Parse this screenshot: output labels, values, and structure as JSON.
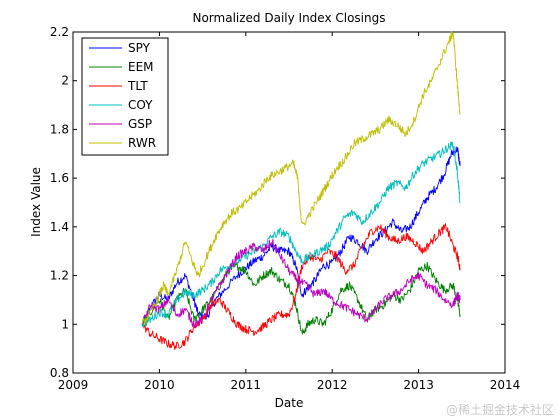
{
  "chart_data": {
    "type": "line",
    "title": "Normalized Daily Index Closings",
    "xlabel": "Date",
    "ylabel": "Index Value",
    "xlim": [
      2009,
      2014
    ],
    "ylim": [
      0.8,
      2.2
    ],
    "xticks": [
      "2009",
      "2010",
      "2011",
      "2012",
      "2013",
      "2014"
    ],
    "yticks": [
      "0.8",
      "1",
      "1.2",
      "1.4",
      "1.6",
      "1.8",
      "2",
      "2.2"
    ],
    "grid": false,
    "legend_position": "top-left",
    "series": [
      {
        "name": "SPY",
        "color": "#0000ff",
        "points": [
          [
            2009.8,
            1.0
          ],
          [
            2009.9,
            1.07
          ],
          [
            2010.0,
            1.12
          ],
          [
            2010.1,
            1.1
          ],
          [
            2010.2,
            1.17
          ],
          [
            2010.3,
            1.2
          ],
          [
            2010.4,
            1.1
          ],
          [
            2010.45,
            1.04
          ],
          [
            2010.55,
            1.03
          ],
          [
            2010.65,
            1.1
          ],
          [
            2010.75,
            1.14
          ],
          [
            2010.9,
            1.2
          ],
          [
            2011.0,
            1.23
          ],
          [
            2011.1,
            1.26
          ],
          [
            2011.2,
            1.28
          ],
          [
            2011.3,
            1.32
          ],
          [
            2011.4,
            1.3
          ],
          [
            2011.5,
            1.3
          ],
          [
            2011.58,
            1.24
          ],
          [
            2011.65,
            1.12
          ],
          [
            2011.72,
            1.15
          ],
          [
            2011.8,
            1.18
          ],
          [
            2011.9,
            1.24
          ],
          [
            2012.0,
            1.25
          ],
          [
            2012.1,
            1.3
          ],
          [
            2012.2,
            1.36
          ],
          [
            2012.3,
            1.34
          ],
          [
            2012.4,
            1.3
          ],
          [
            2012.5,
            1.35
          ],
          [
            2012.6,
            1.38
          ],
          [
            2012.7,
            1.42
          ],
          [
            2012.8,
            1.38
          ],
          [
            2012.9,
            1.4
          ],
          [
            2013.0,
            1.46
          ],
          [
            2013.1,
            1.52
          ],
          [
            2013.2,
            1.56
          ],
          [
            2013.3,
            1.62
          ],
          [
            2013.38,
            1.7
          ],
          [
            2013.45,
            1.72
          ],
          [
            2013.48,
            1.65
          ]
        ]
      },
      {
        "name": "EEM",
        "color": "#008000",
        "points": [
          [
            2009.8,
            1.0
          ],
          [
            2009.9,
            1.05
          ],
          [
            2010.0,
            1.1
          ],
          [
            2010.1,
            1.02
          ],
          [
            2010.2,
            1.1
          ],
          [
            2010.3,
            1.14
          ],
          [
            2010.4,
            1.02
          ],
          [
            2010.5,
            1.06
          ],
          [
            2010.6,
            1.1
          ],
          [
            2010.7,
            1.16
          ],
          [
            2010.8,
            1.22
          ],
          [
            2010.9,
            1.24
          ],
          [
            2011.0,
            1.22
          ],
          [
            2011.1,
            1.16
          ],
          [
            2011.2,
            1.2
          ],
          [
            2011.3,
            1.22
          ],
          [
            2011.4,
            1.18
          ],
          [
            2011.5,
            1.16
          ],
          [
            2011.58,
            1.08
          ],
          [
            2011.65,
            0.96
          ],
          [
            2011.72,
            1.0
          ],
          [
            2011.8,
            1.02
          ],
          [
            2011.9,
            1.0
          ],
          [
            2012.0,
            1.06
          ],
          [
            2012.1,
            1.14
          ],
          [
            2012.2,
            1.16
          ],
          [
            2012.3,
            1.1
          ],
          [
            2012.4,
            1.02
          ],
          [
            2012.5,
            1.06
          ],
          [
            2012.6,
            1.08
          ],
          [
            2012.7,
            1.12
          ],
          [
            2012.8,
            1.1
          ],
          [
            2012.9,
            1.14
          ],
          [
            2013.0,
            1.22
          ],
          [
            2013.1,
            1.24
          ],
          [
            2013.2,
            1.18
          ],
          [
            2013.3,
            1.14
          ],
          [
            2013.4,
            1.16
          ],
          [
            2013.45,
            1.1
          ],
          [
            2013.48,
            1.04
          ]
        ]
      },
      {
        "name": "TLT",
        "color": "#ff0000",
        "points": [
          [
            2009.8,
            1.0
          ],
          [
            2009.9,
            0.96
          ],
          [
            2010.0,
            0.94
          ],
          [
            2010.1,
            0.92
          ],
          [
            2010.2,
            0.91
          ],
          [
            2010.3,
            0.93
          ],
          [
            2010.4,
            0.99
          ],
          [
            2010.5,
            1.02
          ],
          [
            2010.6,
            1.08
          ],
          [
            2010.7,
            1.1
          ],
          [
            2010.8,
            1.05
          ],
          [
            2010.9,
            1.0
          ],
          [
            2011.0,
            0.98
          ],
          [
            2011.1,
            0.97
          ],
          [
            2011.2,
            0.99
          ],
          [
            2011.3,
            1.02
          ],
          [
            2011.4,
            1.04
          ],
          [
            2011.5,
            1.04
          ],
          [
            2011.58,
            1.12
          ],
          [
            2011.65,
            1.24
          ],
          [
            2011.75,
            1.28
          ],
          [
            2011.85,
            1.26
          ],
          [
            2011.95,
            1.3
          ],
          [
            2012.05,
            1.28
          ],
          [
            2012.15,
            1.22
          ],
          [
            2012.25,
            1.24
          ],
          [
            2012.35,
            1.32
          ],
          [
            2012.45,
            1.38
          ],
          [
            2012.55,
            1.4
          ],
          [
            2012.65,
            1.36
          ],
          [
            2012.75,
            1.34
          ],
          [
            2012.85,
            1.36
          ],
          [
            2012.95,
            1.34
          ],
          [
            2013.05,
            1.3
          ],
          [
            2013.15,
            1.34
          ],
          [
            2013.25,
            1.38
          ],
          [
            2013.32,
            1.4
          ],
          [
            2013.4,
            1.32
          ],
          [
            2013.45,
            1.28
          ],
          [
            2013.48,
            1.23
          ]
        ]
      },
      {
        "name": "COY",
        "color": "#00bfbf",
        "points": [
          [
            2009.8,
            1.0
          ],
          [
            2009.9,
            1.02
          ],
          [
            2010.0,
            1.05
          ],
          [
            2010.1,
            1.04
          ],
          [
            2010.2,
            1.1
          ],
          [
            2010.3,
            1.13
          ],
          [
            2010.4,
            1.12
          ],
          [
            2010.5,
            1.14
          ],
          [
            2010.6,
            1.17
          ],
          [
            2010.7,
            1.22
          ],
          [
            2010.8,
            1.24
          ],
          [
            2010.9,
            1.26
          ],
          [
            2011.0,
            1.28
          ],
          [
            2011.1,
            1.3
          ],
          [
            2011.2,
            1.32
          ],
          [
            2011.3,
            1.36
          ],
          [
            2011.4,
            1.38
          ],
          [
            2011.5,
            1.36
          ],
          [
            2011.58,
            1.3
          ],
          [
            2011.65,
            1.26
          ],
          [
            2011.75,
            1.28
          ],
          [
            2011.85,
            1.3
          ],
          [
            2011.95,
            1.32
          ],
          [
            2012.05,
            1.38
          ],
          [
            2012.15,
            1.44
          ],
          [
            2012.25,
            1.46
          ],
          [
            2012.35,
            1.42
          ],
          [
            2012.45,
            1.46
          ],
          [
            2012.55,
            1.5
          ],
          [
            2012.65,
            1.56
          ],
          [
            2012.75,
            1.58
          ],
          [
            2012.85,
            1.56
          ],
          [
            2012.95,
            1.62
          ],
          [
            2013.05,
            1.66
          ],
          [
            2013.15,
            1.68
          ],
          [
            2013.25,
            1.7
          ],
          [
            2013.32,
            1.72
          ],
          [
            2013.4,
            1.74
          ],
          [
            2013.45,
            1.62
          ],
          [
            2013.48,
            1.5
          ]
        ]
      },
      {
        "name": "GSP",
        "color": "#bf00bf",
        "points": [
          [
            2009.8,
            1.0
          ],
          [
            2009.9,
            1.08
          ],
          [
            2010.0,
            1.06
          ],
          [
            2010.1,
            1.1
          ],
          [
            2010.2,
            1.04
          ],
          [
            2010.3,
            1.06
          ],
          [
            2010.4,
            1.0
          ],
          [
            2010.5,
            1.02
          ],
          [
            2010.6,
            1.1
          ],
          [
            2010.7,
            1.16
          ],
          [
            2010.8,
            1.22
          ],
          [
            2010.9,
            1.28
          ],
          [
            2011.0,
            1.3
          ],
          [
            2011.1,
            1.32
          ],
          [
            2011.2,
            1.3
          ],
          [
            2011.3,
            1.34
          ],
          [
            2011.4,
            1.28
          ],
          [
            2011.5,
            1.22
          ],
          [
            2011.6,
            1.18
          ],
          [
            2011.7,
            1.16
          ],
          [
            2011.8,
            1.12
          ],
          [
            2011.9,
            1.14
          ],
          [
            2012.0,
            1.1
          ],
          [
            2012.1,
            1.08
          ],
          [
            2012.2,
            1.06
          ],
          [
            2012.3,
            1.04
          ],
          [
            2012.4,
            1.02
          ],
          [
            2012.5,
            1.06
          ],
          [
            2012.6,
            1.1
          ],
          [
            2012.7,
            1.12
          ],
          [
            2012.8,
            1.14
          ],
          [
            2012.9,
            1.18
          ],
          [
            2013.0,
            1.2
          ],
          [
            2013.1,
            1.16
          ],
          [
            2013.2,
            1.14
          ],
          [
            2013.3,
            1.1
          ],
          [
            2013.4,
            1.08
          ],
          [
            2013.45,
            1.12
          ],
          [
            2013.48,
            1.1
          ]
        ]
      },
      {
        "name": "RWR",
        "color": "#bfbf00",
        "points": [
          [
            2009.8,
            1.0
          ],
          [
            2009.9,
            1.05
          ],
          [
            2010.0,
            1.12
          ],
          [
            2010.05,
            1.16
          ],
          [
            2010.1,
            1.12
          ],
          [
            2010.2,
            1.22
          ],
          [
            2010.3,
            1.34
          ],
          [
            2010.4,
            1.24
          ],
          [
            2010.45,
            1.2
          ],
          [
            2010.55,
            1.28
          ],
          [
            2010.65,
            1.36
          ],
          [
            2010.75,
            1.42
          ],
          [
            2010.85,
            1.46
          ],
          [
            2010.95,
            1.48
          ],
          [
            2011.05,
            1.52
          ],
          [
            2011.15,
            1.55
          ],
          [
            2011.25,
            1.6
          ],
          [
            2011.35,
            1.62
          ],
          [
            2011.45,
            1.64
          ],
          [
            2011.55,
            1.66
          ],
          [
            2011.6,
            1.6
          ],
          [
            2011.65,
            1.4
          ],
          [
            2011.75,
            1.46
          ],
          [
            2011.85,
            1.52
          ],
          [
            2011.95,
            1.58
          ],
          [
            2012.05,
            1.64
          ],
          [
            2012.15,
            1.68
          ],
          [
            2012.25,
            1.74
          ],
          [
            2012.35,
            1.76
          ],
          [
            2012.45,
            1.78
          ],
          [
            2012.55,
            1.8
          ],
          [
            2012.65,
            1.84
          ],
          [
            2012.75,
            1.82
          ],
          [
            2012.85,
            1.78
          ],
          [
            2012.95,
            1.84
          ],
          [
            2013.05,
            1.94
          ],
          [
            2013.15,
            2.0
          ],
          [
            2013.25,
            2.08
          ],
          [
            2013.35,
            2.16
          ],
          [
            2013.4,
            2.2
          ],
          [
            2013.44,
            2.02
          ],
          [
            2013.48,
            1.86
          ]
        ]
      }
    ]
  },
  "watermark": "@稀土掘金技术社区"
}
